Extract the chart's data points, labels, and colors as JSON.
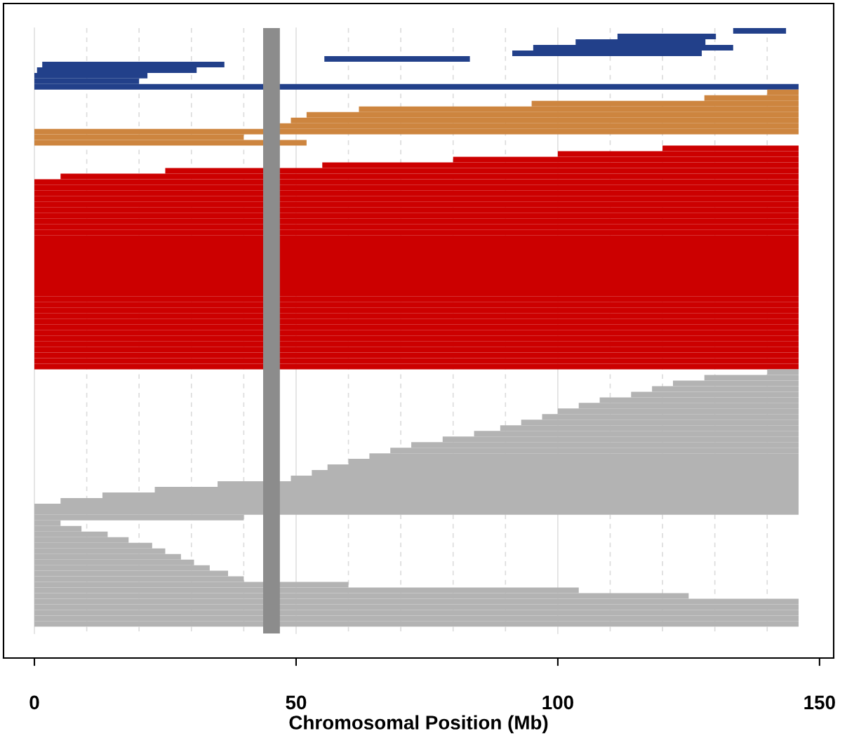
{
  "chart_data": {
    "type": "bar",
    "orientation": "horizontal",
    "xlabel": "Chromosomal Position (Mb)",
    "tick_labels": "x",
    "grid": false,
    "legend": false,
    "xlim": [
      -5.9,
      152.7
    ],
    "xticks": [
      0,
      50,
      100,
      150
    ],
    "categories": [
      null,
      null,
      null,
      null,
      null,
      null,
      null,
      null,
      null,
      null,
      null,
      null,
      null,
      null,
      null,
      null,
      null,
      null,
      null,
      null,
      null,
      null,
      null,
      null,
      null,
      null,
      null,
      null,
      null,
      null,
      null,
      null,
      null,
      null,
      null,
      null,
      null,
      null,
      null,
      null,
      null,
      null,
      null,
      null,
      null,
      null,
      null,
      null,
      null,
      null,
      null,
      null,
      null,
      null,
      null,
      null,
      null,
      null,
      null,
      null,
      null,
      null,
      null,
      null,
      null,
      null,
      null,
      null,
      null,
      null,
      null,
      null,
      null,
      null,
      null,
      null,
      null,
      null,
      null,
      null,
      null,
      null,
      null,
      null,
      null,
      null,
      null,
      null,
      null,
      null,
      null,
      null,
      null,
      null,
      null,
      null,
      null,
      null,
      null,
      null,
      null,
      null,
      null,
      null,
      null,
      null,
      null
    ],
    "base": [
      133.5,
      111.4,
      103.4,
      95.3,
      91.3,
      55.4,
      1.5,
      0.5,
      0,
      0,
      0,
      140,
      128,
      95,
      62,
      52,
      49,
      44,
      0,
      0,
      0,
      120,
      100,
      80,
      55,
      25,
      5,
      0,
      0,
      0,
      0,
      0,
      0,
      0,
      0,
      0,
      0,
      0,
      0,
      0,
      0,
      0,
      0,
      0,
      0,
      0,
      0,
      0,
      0,
      0,
      0,
      0,
      0,
      0,
      0,
      0,
      0,
      0,
      0,
      0,
      0,
      140,
      128,
      122,
      118,
      114,
      108,
      104,
      100,
      97,
      93,
      89,
      84,
      78,
      72,
      68,
      64,
      60,
      56,
      53,
      49,
      35,
      23,
      13,
      5,
      0,
      0,
      0,
      0,
      0,
      0,
      0,
      0,
      0,
      0,
      0,
      0,
      0,
      0,
      0,
      0,
      0,
      0,
      0,
      0,
      0,
      0
    ],
    "values": [
      10.1,
      18.8,
      24.8,
      38.2,
      36.2,
      27.8,
      34.8,
      30.5,
      21.6,
      20,
      146,
      6,
      18,
      51,
      84,
      94,
      97,
      102,
      146,
      40,
      52,
      26,
      46,
      66,
      91,
      121,
      141,
      146,
      146,
      146,
      146,
      146,
      146,
      146,
      146,
      146,
      146,
      146,
      146,
      146,
      146,
      146,
      146,
      146,
      146,
      146,
      146,
      146,
      146,
      146,
      146,
      146,
      146,
      146,
      146,
      146,
      146,
      146,
      146,
      146,
      146,
      6,
      18,
      24,
      28,
      32,
      38,
      42,
      46,
      49,
      53,
      57,
      62,
      68,
      74,
      78,
      82,
      86,
      90,
      93,
      97,
      111,
      123,
      133,
      141,
      146,
      146,
      40,
      5,
      9,
      14,
      18,
      22.5,
      25,
      28,
      30.5,
      33.5,
      37,
      40,
      60,
      104,
      125,
      146,
      146,
      146,
      146,
      146
    ],
    "colors": [
      "#22408a",
      "#22408a",
      "#22408a",
      "#22408a",
      "#22408a",
      "#22408a",
      "#22408a",
      "#22408a",
      "#22408a",
      "#22408a",
      "#22408a",
      "#cd853f",
      "#cd853f",
      "#cd853f",
      "#cd853f",
      "#cd853f",
      "#cd853f",
      "#cd853f",
      "#cd853f",
      "#cd853f",
      "#cd853f",
      "#cc0000",
      "#cc0000",
      "#cc0000",
      "#cc0000",
      "#cc0000",
      "#cc0000",
      "#cc0000",
      "#cc0000",
      "#cc0000",
      "#cc0000",
      "#cc0000",
      "#cc0000",
      "#cc0000",
      "#cc0000",
      "#cc0000",
      "#cc0000",
      "#cc0000",
      "#cc0000",
      "#cc0000",
      "#cc0000",
      "#cc0000",
      "#cc0000",
      "#cc0000",
      "#cc0000",
      "#cc0000",
      "#cc0000",
      "#cc0000",
      "#cc0000",
      "#cc0000",
      "#cc0000",
      "#cc0000",
      "#cc0000",
      "#cc0000",
      "#cc0000",
      "#cc0000",
      "#cc0000",
      "#cc0000",
      "#cc0000",
      "#cc0000",
      "#cc0000",
      "#b3b3b3",
      "#b3b3b3",
      "#b3b3b3",
      "#b3b3b3",
      "#b3b3b3",
      "#b3b3b3",
      "#b3b3b3",
      "#b3b3b3",
      "#b3b3b3",
      "#b3b3b3",
      "#b3b3b3",
      "#b3b3b3",
      "#b3b3b3",
      "#b3b3b3",
      "#b3b3b3",
      "#b3b3b3",
      "#b3b3b3",
      "#b3b3b3",
      "#b3b3b3",
      "#b3b3b3",
      "#b3b3b3",
      "#b3b3b3",
      "#b3b3b3",
      "#b3b3b3",
      "#b3b3b3",
      "#b3b3b3",
      "#b3b3b3",
      "#b3b3b3",
      "#b3b3b3",
      "#b3b3b3",
      "#b3b3b3",
      "#b3b3b3",
      "#b3b3b3",
      "#b3b3b3",
      "#b3b3b3",
      "#b3b3b3",
      "#b3b3b3",
      "#b3b3b3",
      "#b3b3b3",
      "#b3b3b3",
      "#b3b3b3",
      "#b3b3b3",
      "#b3b3b3",
      "#b3b3b3",
      "#b3b3b3",
      "#b3b3b3"
    ],
    "bands": [
      {
        "axis": "x",
        "from": 43.7,
        "to": 46.9,
        "color": "#8c8c8c"
      }
    ],
    "ref_lines": [
      {
        "axis": "x",
        "value": 0,
        "color": "#e0e0e0",
        "line_style": "solid"
      },
      {
        "axis": "x",
        "value": 10,
        "color": "#dcdcdc",
        "line_style": "dashed"
      },
      {
        "axis": "x",
        "value": 20,
        "color": "#dcdcdc",
        "line_style": "dashed"
      },
      {
        "axis": "x",
        "value": 30,
        "color": "#dcdcdc",
        "line_style": "dashed"
      },
      {
        "axis": "x",
        "value": 40,
        "color": "#dcdcdc",
        "line_style": "dashed"
      },
      {
        "axis": "x",
        "value": 50,
        "color": "#e0e0e0",
        "line_style": "solid"
      },
      {
        "axis": "x",
        "value": 60,
        "color": "#dcdcdc",
        "line_style": "dashed"
      },
      {
        "axis": "x",
        "value": 70,
        "color": "#dcdcdc",
        "line_style": "dashed"
      },
      {
        "axis": "x",
        "value": 80,
        "color": "#dcdcdc",
        "line_style": "dashed"
      },
      {
        "axis": "x",
        "value": 90,
        "color": "#dcdcdc",
        "line_style": "dashed"
      },
      {
        "axis": "x",
        "value": 100,
        "color": "#e0e0e0",
        "line_style": "solid"
      },
      {
        "axis": "x",
        "value": 110,
        "color": "#dcdcdc",
        "line_style": "dashed"
      },
      {
        "axis": "x",
        "value": 120,
        "color": "#dcdcdc",
        "line_style": "dashed"
      },
      {
        "axis": "x",
        "value": 130,
        "color": "#dcdcdc",
        "line_style": "dashed"
      },
      {
        "axis": "x",
        "value": 140,
        "color": "#dcdcdc",
        "line_style": "dashed"
      }
    ]
  }
}
